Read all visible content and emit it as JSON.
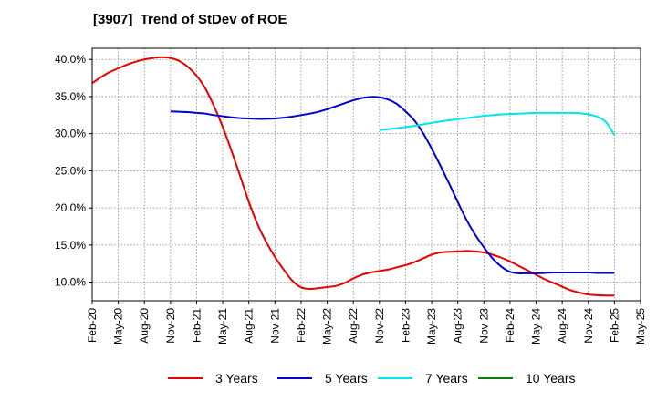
{
  "chart_data": {
    "type": "line",
    "title": "[3907]  Trend of StDev of ROE",
    "xlabel": "",
    "ylabel": "",
    "x_ticks": [
      "Feb-20",
      "May-20",
      "Aug-20",
      "Nov-20",
      "Feb-21",
      "May-21",
      "Aug-21",
      "Nov-21",
      "Feb-22",
      "May-22",
      "Aug-22",
      "Nov-22",
      "Feb-23",
      "May-23",
      "Aug-23",
      "Nov-23",
      "Feb-24",
      "May-24",
      "Aug-24",
      "Nov-24",
      "Feb-25",
      "May-25"
    ],
    "y_ticks": [
      "10.0%",
      "15.0%",
      "20.0%",
      "25.0%",
      "30.0%",
      "35.0%",
      "40.0%"
    ],
    "ylim": [
      7.5,
      41.5
    ],
    "grid": true,
    "legend_position": "bottom",
    "series": [
      {
        "name": "3 Years",
        "color": "#e60000",
        "x": [
          "Feb-20",
          "Mar-20",
          "Apr-20",
          "May-20",
          "Jun-20",
          "Jul-20",
          "Aug-20",
          "Sep-20",
          "Oct-20",
          "Nov-20",
          "Dec-20",
          "Jan-21",
          "Feb-21",
          "Mar-21",
          "Apr-21",
          "May-21",
          "Jun-21",
          "Jul-21",
          "Aug-21",
          "Sep-21",
          "Oct-21",
          "Nov-21",
          "Dec-21",
          "Jan-22",
          "Feb-22",
          "Mar-22",
          "Apr-22",
          "May-22",
          "Jun-22",
          "Jul-22",
          "Aug-22",
          "Sep-22",
          "Oct-22",
          "Nov-22",
          "Dec-22",
          "Jan-23",
          "Feb-23",
          "Mar-23",
          "Apr-23",
          "May-23",
          "Jun-23",
          "Jul-23",
          "Aug-23",
          "Sep-23",
          "Oct-23",
          "Nov-23",
          "Dec-23",
          "Jan-24",
          "Feb-24",
          "Mar-24",
          "Apr-24",
          "May-24",
          "Jun-24",
          "Jul-24",
          "Aug-24",
          "Sep-24",
          "Oct-24",
          "Nov-24",
          "Dec-24",
          "Jan-25",
          "Feb-25"
        ],
        "values": [
          36.8,
          37.6,
          38.3,
          38.8,
          39.3,
          39.7,
          40.0,
          40.2,
          40.3,
          40.2,
          39.8,
          39.0,
          37.8,
          36.1,
          33.7,
          30.9,
          27.7,
          24.3,
          20.8,
          17.8,
          15.4,
          13.4,
          11.7,
          10.2,
          9.3,
          9.1,
          9.2,
          9.35,
          9.5,
          9.9,
          10.5,
          11.0,
          11.3,
          11.5,
          11.7,
          12.0,
          12.3,
          12.7,
          13.2,
          13.7,
          14.0,
          14.1,
          14.15,
          14.2,
          14.15,
          14.0,
          13.7,
          13.3,
          12.8,
          12.2,
          11.6,
          11.0,
          10.4,
          9.9,
          9.4,
          8.9,
          8.6,
          8.35,
          8.25,
          8.2,
          8.2
        ]
      },
      {
        "name": "5 Years",
        "color": "#0000cc",
        "x": [
          "Nov-20",
          "Dec-20",
          "Jan-21",
          "Feb-21",
          "Mar-21",
          "Apr-21",
          "May-21",
          "Jun-21",
          "Jul-21",
          "Aug-21",
          "Sep-21",
          "Oct-21",
          "Nov-21",
          "Dec-21",
          "Jan-22",
          "Feb-22",
          "Mar-22",
          "Apr-22",
          "May-22",
          "Jun-22",
          "Jul-22",
          "Aug-22",
          "Sep-22",
          "Oct-22",
          "Nov-22",
          "Dec-22",
          "Jan-23",
          "Feb-23",
          "Mar-23",
          "Apr-23",
          "May-23",
          "Jun-23",
          "Jul-23",
          "Aug-23",
          "Sep-23",
          "Oct-23",
          "Nov-23",
          "Dec-23",
          "Jan-24",
          "Feb-24",
          "Mar-24",
          "Apr-24",
          "May-24",
          "Jun-24",
          "Jul-24",
          "Aug-24",
          "Sep-24",
          "Oct-24",
          "Nov-24",
          "Dec-24",
          "Jan-25",
          "Feb-25"
        ],
        "values": [
          33.0,
          32.95,
          32.9,
          32.8,
          32.7,
          32.5,
          32.35,
          32.2,
          32.1,
          32.05,
          32.0,
          32.0,
          32.05,
          32.15,
          32.3,
          32.5,
          32.7,
          32.95,
          33.3,
          33.7,
          34.1,
          34.5,
          34.8,
          34.95,
          34.9,
          34.6,
          34.0,
          33.0,
          31.8,
          30.1,
          28.0,
          25.7,
          23.3,
          20.8,
          18.4,
          16.4,
          14.7,
          13.2,
          12.1,
          11.4,
          11.2,
          11.2,
          11.2,
          11.25,
          11.3,
          11.3,
          11.3,
          11.3,
          11.3,
          11.25,
          11.25,
          11.25
        ]
      },
      {
        "name": "7 Years",
        "color": "#00e5ee",
        "x": [
          "Nov-22",
          "Dec-22",
          "Jan-23",
          "Feb-23",
          "Mar-23",
          "Apr-23",
          "May-23",
          "Jun-23",
          "Jul-23",
          "Aug-23",
          "Sep-23",
          "Oct-23",
          "Nov-23",
          "Dec-23",
          "Jan-24",
          "Feb-24",
          "Mar-24",
          "Apr-24",
          "May-24",
          "Jun-24",
          "Jul-24",
          "Aug-24",
          "Sep-24",
          "Oct-24",
          "Nov-24",
          "Dec-24",
          "Jan-25",
          "Feb-25"
        ],
        "values": [
          30.5,
          30.6,
          30.75,
          30.9,
          31.05,
          31.25,
          31.45,
          31.65,
          31.8,
          31.95,
          32.1,
          32.25,
          32.4,
          32.5,
          32.6,
          32.65,
          32.7,
          32.75,
          32.8,
          32.8,
          32.8,
          32.8,
          32.8,
          32.75,
          32.6,
          32.3,
          31.6,
          29.8
        ]
      },
      {
        "name": "10 Years",
        "color": "#008000",
        "x": [],
        "values": []
      }
    ]
  }
}
